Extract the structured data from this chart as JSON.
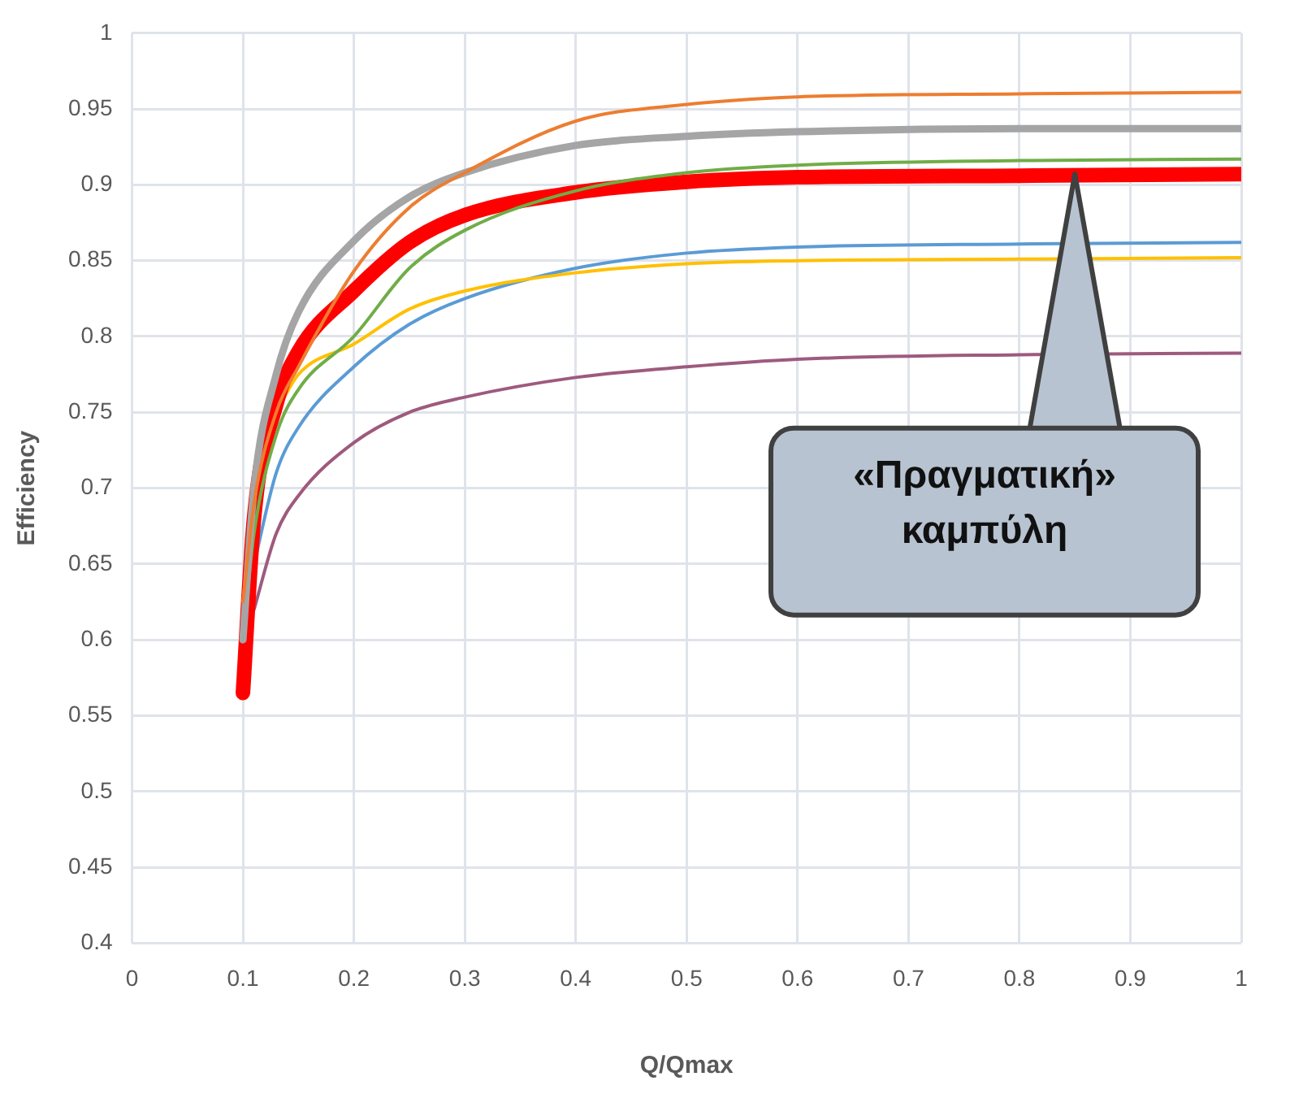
{
  "chart_data": {
    "type": "line",
    "xlabel": "Q/Qmax",
    "ylabel": "Efficiency",
    "x": [
      0.1,
      0.11,
      0.13,
      0.15,
      0.2,
      0.25,
      0.3,
      0.4,
      0.5,
      0.6,
      0.8,
      1.0
    ],
    "series": [
      {
        "color": "#ed7d31",
        "values": [
          0.625,
          0.69,
          0.75,
          0.78,
          0.843,
          0.885,
          0.908,
          0.942,
          0.953,
          0.958,
          0.96,
          0.961
        ]
      },
      {
        "color": "#a5a5a5",
        "values": [
          0.6,
          0.7,
          0.775,
          0.816,
          0.863,
          0.892,
          0.908,
          0.926,
          0.932,
          0.935,
          0.937,
          0.937
        ]
      },
      {
        "color": "#70ad47",
        "values": [
          0.6,
          0.67,
          0.735,
          0.765,
          0.8,
          0.845,
          0.87,
          0.896,
          0.908,
          0.913,
          0.916,
          0.917
        ]
      },
      {
        "color": "#ff0000",
        "values": [
          0.565,
          0.68,
          0.755,
          0.79,
          0.83,
          0.862,
          0.88,
          0.895,
          0.902,
          0.905,
          0.906,
          0.907
        ]
      },
      {
        "color": "#ffc000",
        "values": [
          null,
          null,
          0.75,
          0.775,
          0.795,
          0.818,
          0.83,
          0.842,
          0.848,
          0.85,
          0.851,
          0.852
        ]
      },
      {
        "color": "#5b9bd5",
        "values": [
          null,
          0.65,
          0.71,
          0.74,
          0.78,
          0.808,
          0.825,
          0.845,
          0.855,
          0.859,
          0.861,
          0.862
        ]
      },
      {
        "color": "#9e5a7e",
        "values": [
          null,
          0.62,
          0.67,
          0.695,
          0.73,
          0.75,
          0.76,
          0.773,
          0.78,
          0.785,
          0.788,
          0.789
        ]
      }
    ],
    "xlim": [
      0,
      1
    ],
    "xticks": [
      0,
      0.1,
      0.2,
      0.3,
      0.4,
      0.5,
      0.6,
      0.7,
      0.8,
      0.9,
      1
    ],
    "ylim": [
      0.4,
      1
    ],
    "yticks": [
      0.4,
      0.45,
      0.5,
      0.55,
      0.6,
      0.65,
      0.7,
      0.75,
      0.8,
      0.85,
      0.9,
      0.95,
      1
    ],
    "grid": true,
    "legend": false,
    "marker": "none",
    "line_style": "solid",
    "annotations": [
      {
        "text": "«Πραγματική» καμπύλη",
        "x": 0.85,
        "y": 0.907
      }
    ]
  }
}
